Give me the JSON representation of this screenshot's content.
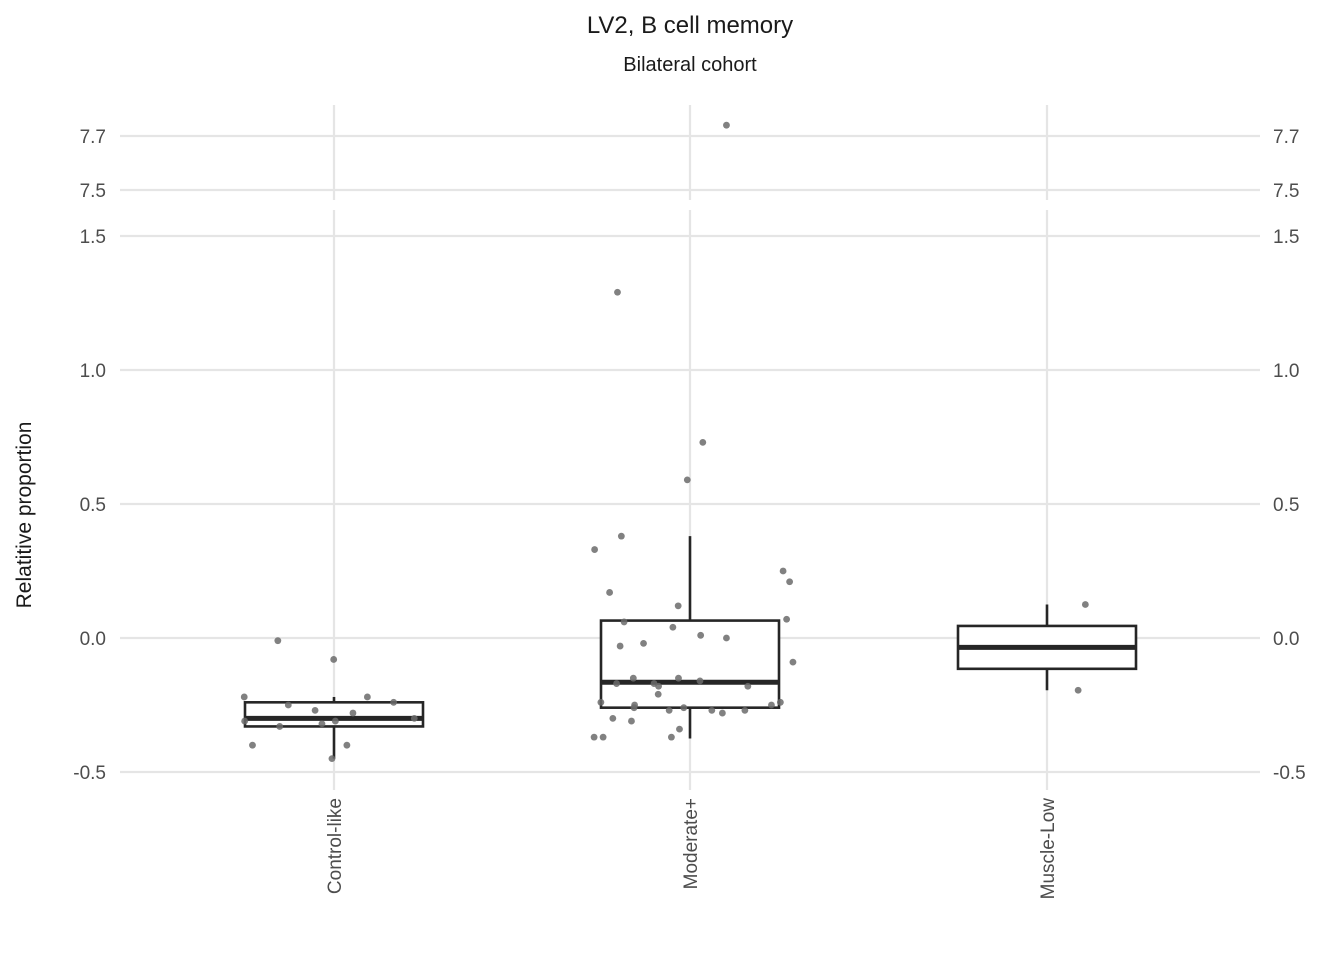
{
  "chart_data": {
    "type": "box",
    "title": "LV2, B cell memory",
    "subtitle": "Bilateral cohort",
    "xlabel": "",
    "ylabel": "Relatitive proportion",
    "categories": [
      "Control-like",
      "Moderate+",
      "Muscle-Low"
    ],
    "y_axis_segments": [
      {
        "range": [
          -0.5,
          1.5
        ],
        "ticks": [
          "-0.5",
          "0.0",
          "0.5",
          "1.0",
          "1.5"
        ],
        "tick_values": [
          -0.5,
          0.0,
          0.5,
          1.0,
          1.5
        ]
      },
      {
        "range": [
          7.5,
          7.7
        ],
        "ticks": [
          "7.5",
          "7.7"
        ],
        "tick_values": [
          7.5,
          7.7
        ]
      }
    ],
    "secondary_y_axis": "mirrored",
    "grid": true,
    "boxes": [
      {
        "category": "Control-like",
        "whisker_low": -0.45,
        "q1": -0.33,
        "median": -0.3,
        "q3": -0.24,
        "whisker_high": -0.22
      },
      {
        "category": "Moderate+",
        "whisker_low": -0.375,
        "q1": -0.26,
        "median": -0.165,
        "q3": 0.065,
        "whisker_high": 0.38
      },
      {
        "category": "Muscle-Low",
        "whisker_low": -0.195,
        "q1": -0.115,
        "median": -0.035,
        "q3": 0.045,
        "whisker_high": 0.125
      }
    ],
    "points": [
      {
        "category": "Control-like",
        "values": [
          -0.45,
          -0.4,
          -0.4,
          -0.33,
          -0.32,
          -0.31,
          -0.31,
          -0.3,
          -0.28,
          -0.27,
          -0.25,
          -0.24,
          -0.22,
          -0.22,
          -0.08,
          -0.01
        ]
      },
      {
        "category": "Moderate+",
        "values": [
          7.74,
          1.29,
          0.73,
          0.59,
          0.38,
          0.33,
          0.25,
          0.21,
          0.17,
          0.12,
          0.07,
          0.06,
          0.04,
          0.01,
          0.0,
          -0.02,
          -0.03,
          -0.09,
          -0.15,
          -0.15,
          -0.16,
          -0.17,
          -0.17,
          -0.18,
          -0.18,
          -0.21,
          -0.24,
          -0.24,
          -0.25,
          -0.25,
          -0.26,
          -0.26,
          -0.27,
          -0.27,
          -0.27,
          -0.28,
          -0.3,
          -0.31,
          -0.34,
          -0.37,
          -0.37,
          -0.37
        ]
      },
      {
        "category": "Muscle-Low",
        "values": [
          0.125,
          -0.195
        ]
      }
    ],
    "point_color": "#6b6b6b",
    "box_color": "#262626",
    "grid_color": "#e5e5e5"
  }
}
